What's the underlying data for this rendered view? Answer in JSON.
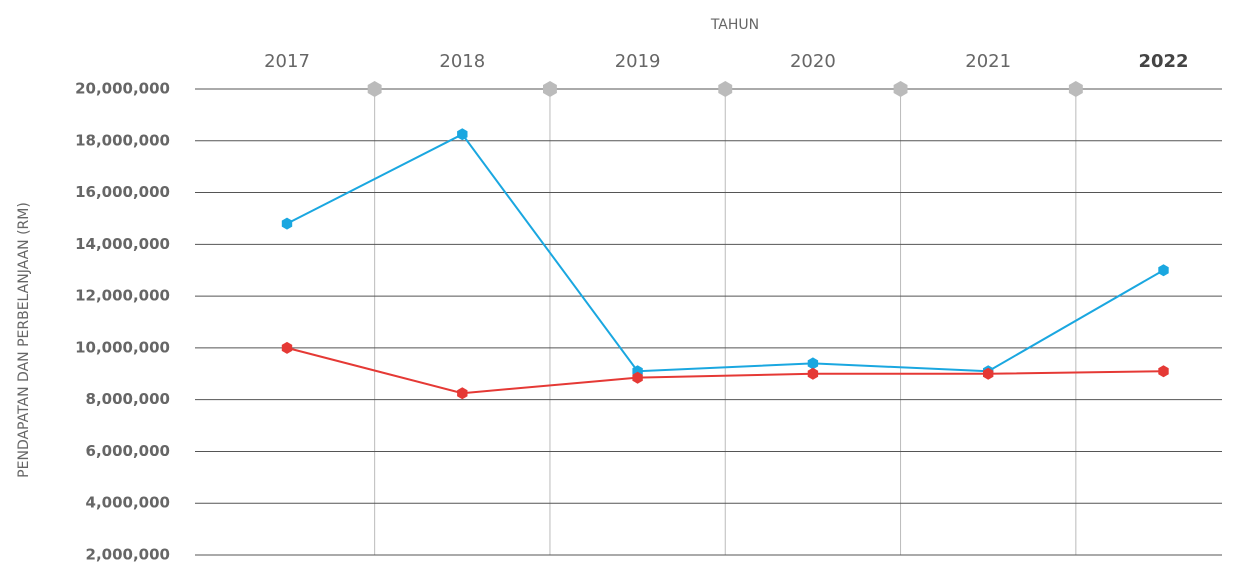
{
  "chart_data": {
    "type": "line",
    "x_label": "TAHUN",
    "y_label": "PENDAPATAN DAN PERBELANJAAN (RM)",
    "categories": [
      "2017",
      "2018",
      "2019",
      "2020",
      "2021",
      "2022"
    ],
    "series": [
      {
        "color": "#1aa7e0",
        "values": [
          14800000,
          18250000,
          9100000,
          9400000,
          9100000,
          13000000
        ]
      },
      {
        "color": "#e53935",
        "values": [
          10000000,
          8250000,
          8850000,
          9000000,
          9000000,
          9100000
        ]
      }
    ],
    "ylim": [
      2000000,
      20000000
    ],
    "yticks": [
      {
        "value": 2000000,
        "label": "2,000,000"
      },
      {
        "value": 4000000,
        "label": "4,000,000"
      },
      {
        "value": 6000000,
        "label": "6,000,000"
      },
      {
        "value": 8000000,
        "label": "8,000,000"
      },
      {
        "value": 10000000,
        "label": "10,000,000"
      },
      {
        "value": 12000000,
        "label": "12,000,000"
      },
      {
        "value": 14000000,
        "label": "14,000,000"
      },
      {
        "value": 16000000,
        "label": "16,000,000"
      },
      {
        "value": 18000000,
        "label": "18,000,000"
      },
      {
        "value": 20000000,
        "label": "20,000,000"
      }
    ],
    "grid": true
  }
}
